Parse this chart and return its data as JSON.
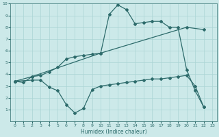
{
  "xlabel": "Humidex (Indice chaleur)",
  "xlim": [
    -0.5,
    23.5
  ],
  "ylim": [
    0,
    10
  ],
  "xticks": [
    0,
    1,
    2,
    3,
    4,
    5,
    6,
    7,
    8,
    9,
    10,
    11,
    12,
    13,
    14,
    15,
    16,
    17,
    18,
    19,
    20,
    21,
    22,
    23
  ],
  "yticks": [
    1,
    2,
    3,
    4,
    5,
    6,
    7,
    8,
    9,
    10
  ],
  "background_color": "#cce9e9",
  "grid_color": "#aad4d4",
  "line_color": "#2d6b6b",
  "line1_x": [
    0,
    1,
    2,
    3,
    4,
    5,
    6,
    7,
    8,
    9,
    10,
    11,
    12,
    13,
    14,
    15,
    16,
    17,
    18,
    19,
    20,
    21,
    22
  ],
  "line1_y": [
    3.4,
    3.3,
    3.8,
    3.9,
    4.2,
    4.6,
    5.3,
    5.5,
    5.6,
    5.7,
    5.8,
    9.1,
    9.9,
    9.5,
    8.3,
    8.4,
    8.5,
    8.5,
    8.0,
    8.0,
    4.4,
    2.6,
    1.2
  ],
  "line2_x": [
    0,
    2,
    3,
    4,
    5,
    6,
    7,
    8,
    9,
    10,
    11,
    12,
    13,
    14,
    15,
    16,
    17,
    18,
    19,
    20,
    21,
    22
  ],
  "line2_y": [
    3.4,
    3.5,
    3.5,
    2.9,
    2.6,
    1.4,
    0.7,
    1.1,
    2.7,
    3.0,
    3.1,
    3.2,
    3.3,
    3.4,
    3.5,
    3.6,
    3.6,
    3.7,
    3.8,
    3.9,
    3.0,
    1.2
  ],
  "line3_x": [
    0,
    2,
    10,
    20,
    22
  ],
  "line3_y": [
    3.4,
    3.8,
    5.8,
    8.0,
    7.8
  ]
}
